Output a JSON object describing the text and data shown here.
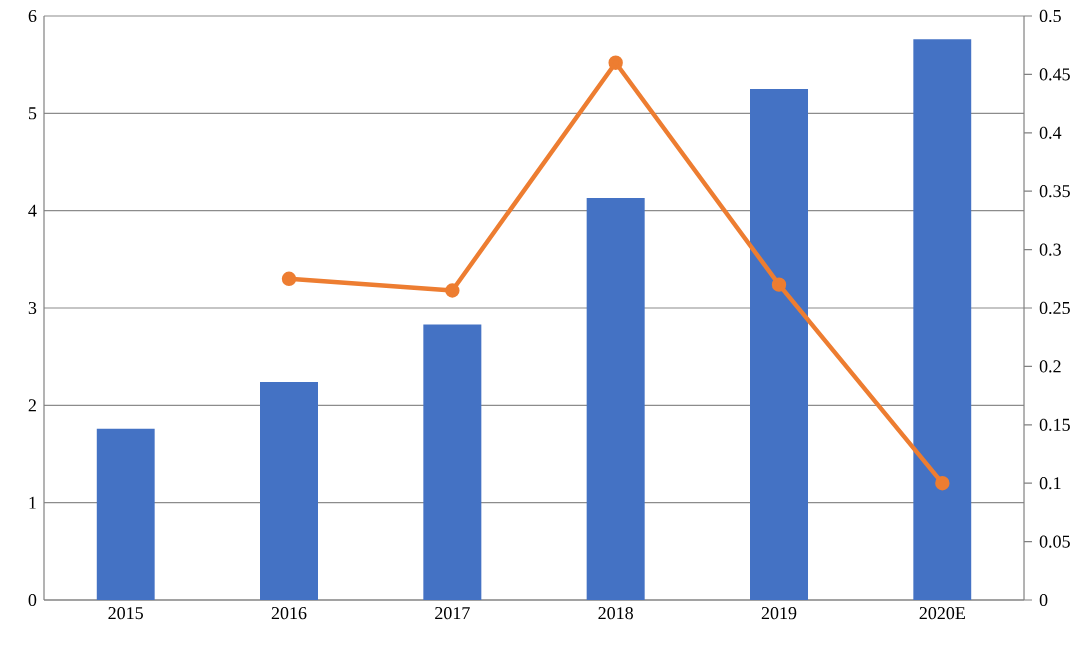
{
  "chart_data": {
    "type": "bar",
    "categories": [
      "2015",
      "2016",
      "2017",
      "2018",
      "2019",
      "2020E"
    ],
    "series": [
      {
        "color": "#4472c4",
        "values": [
          1.76,
          2.24,
          2.83,
          4.13,
          5.25,
          5.76
        ]
      },
      {
        "type": "line",
        "axis": "y2",
        "color": "#ed7d31",
        "marker": "circle",
        "values": [
          null,
          0.275,
          0.265,
          0.46,
          0.27,
          0.1
        ]
      }
    ],
    "ylim": [
      0,
      6
    ],
    "yticks": [
      0,
      1,
      2,
      3,
      4,
      5,
      6
    ],
    "y2lim": [
      0,
      0.5
    ],
    "y2ticks": [
      0,
      0.05,
      0.1,
      0.15,
      0.2,
      0.25,
      0.3,
      0.35,
      0.4,
      0.45,
      0.5
    ],
    "grid": "y"
  }
}
